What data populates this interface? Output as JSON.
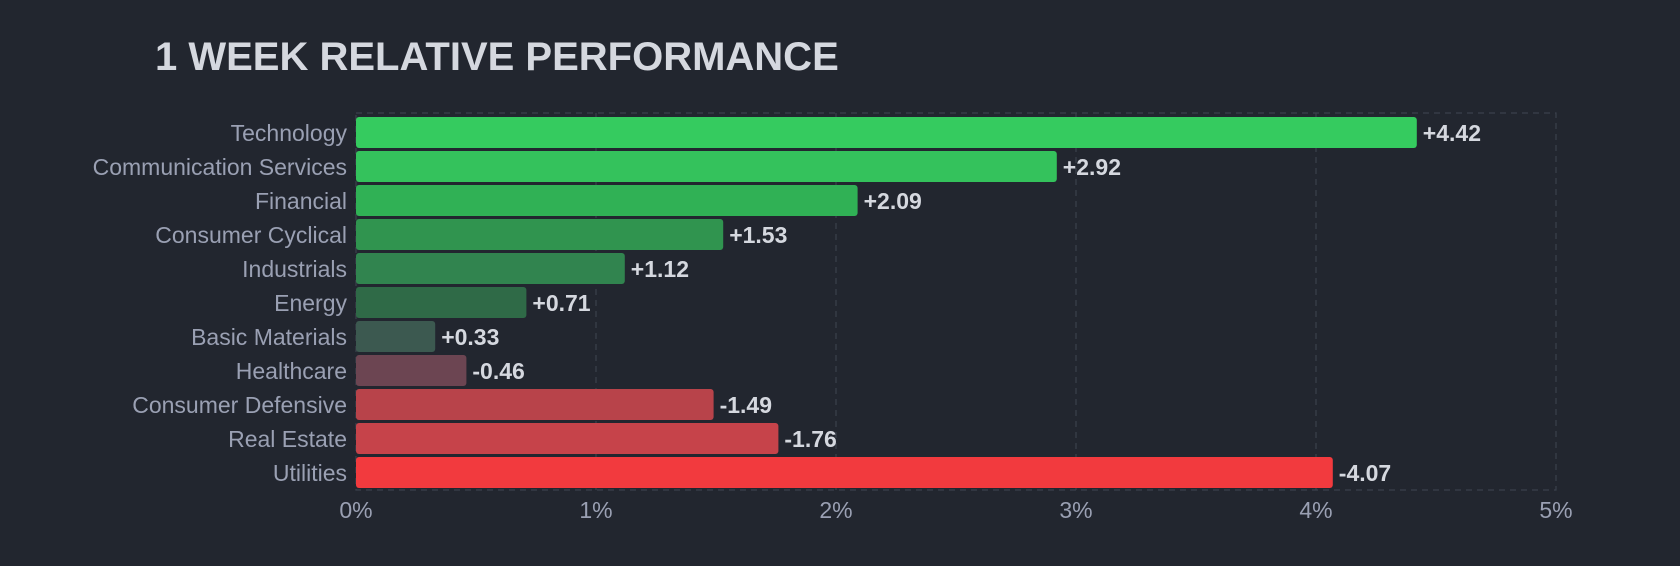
{
  "chart_data": {
    "type": "bar",
    "orientation": "horizontal",
    "title": "1 WEEK RELATIVE PERFORMANCE",
    "categories": [
      "Technology",
      "Communication Services",
      "Financial",
      "Consumer Cyclical",
      "Industrials",
      "Energy",
      "Basic Materials",
      "Healthcare",
      "Consumer Defensive",
      "Real Estate",
      "Utilities"
    ],
    "values": [
      4.42,
      2.92,
      2.09,
      1.53,
      1.12,
      0.71,
      0.33,
      -0.46,
      -1.49,
      -1.76,
      -4.07
    ],
    "value_labels": [
      "+4.42",
      "+2.92",
      "+2.09",
      "+1.53",
      "+1.12",
      "+0.71",
      "+0.33",
      "-0.46",
      "-1.49",
      "-1.76",
      "-4.07"
    ],
    "bar_colors": [
      "#35cb5f",
      "#34c25c",
      "#30b155",
      "#30944f",
      "#31844f",
      "#2f6a47",
      "#3c5950",
      "#6c4552",
      "#b8434a",
      "#c6434a",
      "#f23a3e"
    ],
    "x_ticks": [
      "0%",
      "1%",
      "2%",
      "3%",
      "4%",
      "5%"
    ],
    "xlim": [
      0,
      5
    ],
    "scale": "absolute value",
    "grid": true,
    "xlabel": "",
    "ylabel": ""
  }
}
